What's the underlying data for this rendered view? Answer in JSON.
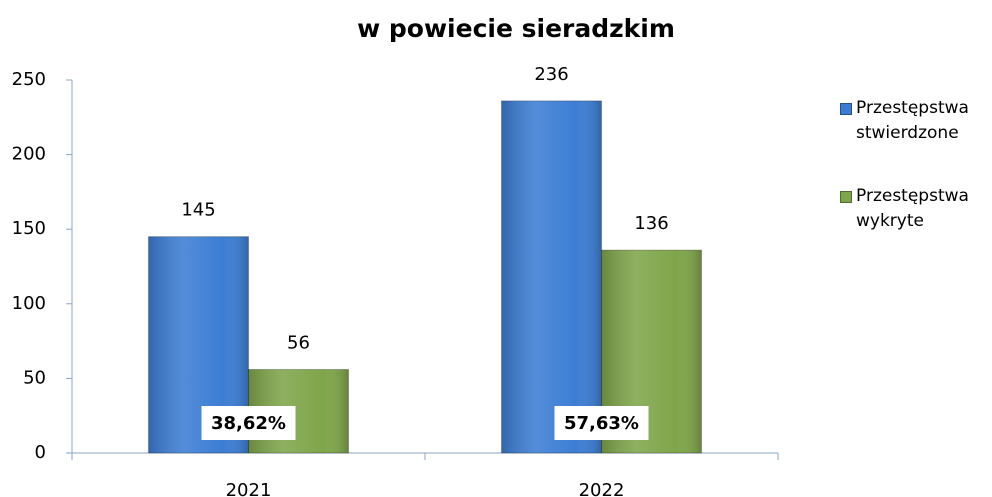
{
  "chart_data": {
    "type": "bar",
    "title": "w powiecie sieradzkim",
    "categories": [
      "2021",
      "2022"
    ],
    "series": [
      {
        "name": "Przestępstwa stwierdzone",
        "color": "#3c7dd4",
        "values": [
          145,
          236
        ]
      },
      {
        "name": "Przestępstwa wykryte",
        "color": "#7fa54a",
        "values": [
          56,
          136
        ]
      }
    ],
    "annotations": [
      "38,62%",
      "57,63%"
    ],
    "ylim": [
      0,
      250
    ],
    "yticks": [
      0,
      50,
      100,
      150,
      200,
      250
    ],
    "grid": false,
    "legend": "right"
  }
}
